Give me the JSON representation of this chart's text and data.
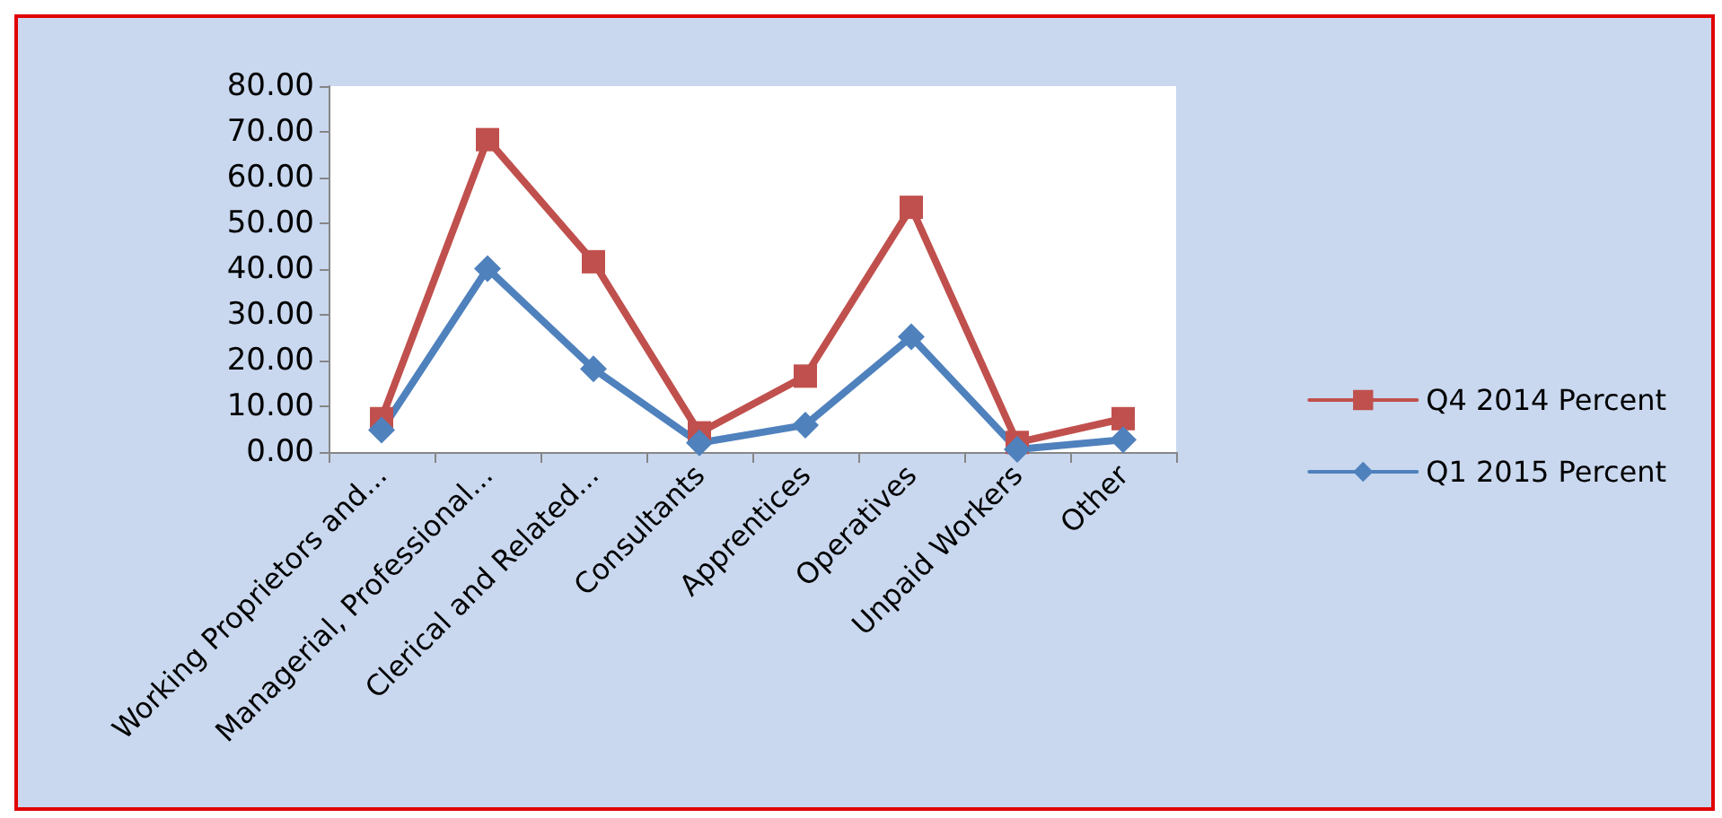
{
  "chart_data": {
    "type": "line",
    "categories": [
      "Working Proprietors and...",
      "Managerial, Professional...",
      "Clerical and Related...",
      "Consultants",
      "Apprentices",
      "Operatives",
      "Unpaid Workers",
      "Other"
    ],
    "series": [
      {
        "name": "Q4 2014 Percent",
        "color": "#c0504d",
        "marker": "square",
        "values": [
          7.3,
          68.3,
          41.6,
          4.2,
          16.6,
          53.5,
          2.1,
          7.3
        ]
      },
      {
        "name": "Q1 2015 Percent",
        "color": "#4f81bd",
        "marker": "diamond",
        "values": [
          4.8,
          40.1,
          18.2,
          2.0,
          5.9,
          25.2,
          0.6,
          2.7
        ]
      }
    ],
    "ylim": [
      0,
      80
    ],
    "yticks": [
      {
        "value": 0,
        "label": "0.00"
      },
      {
        "value": 10,
        "label": "10.00"
      },
      {
        "value": 20,
        "label": "20.00"
      },
      {
        "value": 30,
        "label": "30.00"
      },
      {
        "value": 40,
        "label": "40.00"
      },
      {
        "value": 50,
        "label": "50.00"
      },
      {
        "value": 60,
        "label": "60.00"
      },
      {
        "value": 70,
        "label": "70.00"
      },
      {
        "value": 80,
        "label": "80.00"
      }
    ],
    "grid": false,
    "legend": "right",
    "line_style": "solid"
  }
}
